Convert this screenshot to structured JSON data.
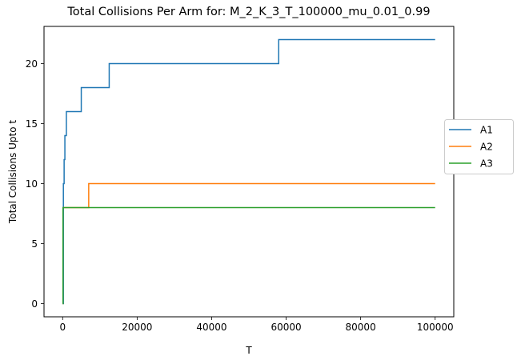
{
  "chart_data": {
    "type": "line",
    "title": "Total Collisions Per Arm for: M_2_K_3_T_100000_mu_0.01_0.99",
    "xlabel": "T",
    "ylabel": "Total Collisions Upto t",
    "xlim": [
      -5000,
      105000
    ],
    "ylim": [
      -1.1,
      23.1
    ],
    "xticks": [
      0,
      20000,
      40000,
      60000,
      80000,
      100000
    ],
    "xtick_labels": [
      "0",
      "20000",
      "40000",
      "60000",
      "80000",
      "100000"
    ],
    "yticks": [
      0,
      5,
      10,
      15,
      20
    ],
    "ytick_labels": [
      "0",
      "5",
      "10",
      "15",
      "20"
    ],
    "grid": false,
    "legend_position": "right-outside",
    "step": "post",
    "series": [
      {
        "name": "A1",
        "color": "#1f77b4",
        "x": [
          0,
          200,
          400,
          600,
          1000,
          5000,
          12500,
          58000,
          100000
        ],
        "y": [
          0,
          10,
          12,
          14,
          16,
          18,
          20,
          22,
          22
        ]
      },
      {
        "name": "A2",
        "color": "#ff7f0e",
        "x": [
          0,
          100,
          7000,
          100000
        ],
        "y": [
          0,
          8,
          10,
          10
        ]
      },
      {
        "name": "A3",
        "color": "#2ca02c",
        "x": [
          0,
          100,
          100000
        ],
        "y": [
          0,
          8,
          8
        ]
      }
    ]
  }
}
